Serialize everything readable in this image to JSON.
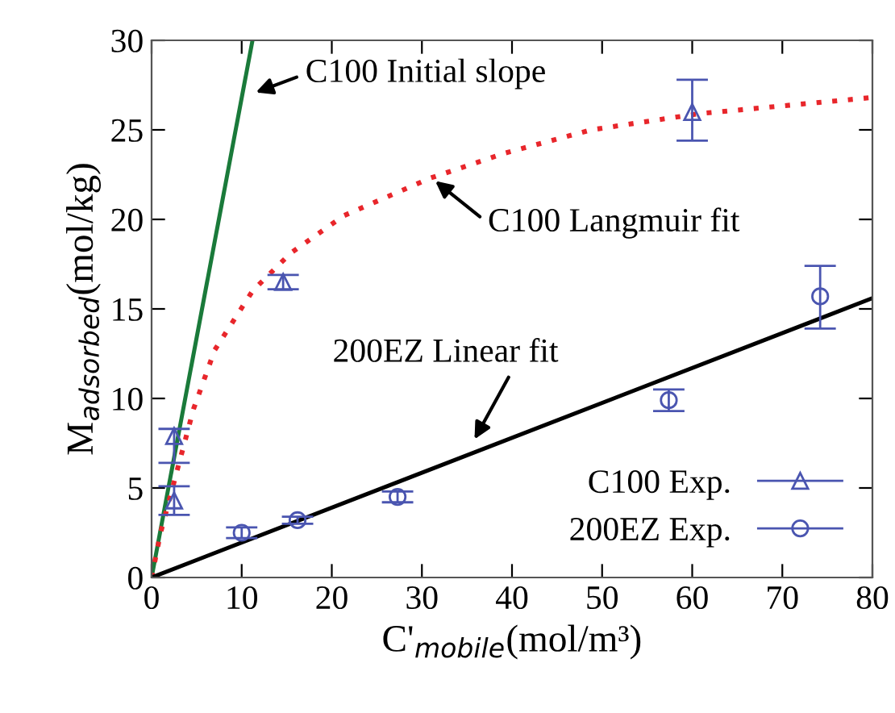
{
  "chart_data": {
    "type": "scatter",
    "xlabel": "C'$_{mobile}$(mol/m³)",
    "ylabel": "M$_{adsorbed}$(mol/kg)",
    "xlim": [
      0,
      80
    ],
    "ylim": [
      0,
      30
    ],
    "xticks": [
      0,
      10,
      20,
      30,
      40,
      50,
      60,
      70,
      80
    ],
    "yticks": [
      0,
      5,
      10,
      15,
      20,
      25,
      30
    ],
    "grid": false,
    "legend": "bottom right",
    "series": [
      {
        "type": "line",
        "color": "#1a7a3a",
        "x": [
          0,
          11.2
        ],
        "values": [
          0,
          30
        ],
        "marker": "none",
        "line_style": "solid"
      },
      {
        "type": "line",
        "color": "#e8262b",
        "x": [
          0,
          1,
          2.9,
          4.65,
          7.0,
          11.2,
          15.4,
          21.3,
          30.9,
          39.2,
          48.8,
          60.7,
          79.8
        ],
        "values": [
          0,
          2.5,
          6.1,
          9.4,
          12.7,
          16.0,
          18.1,
          20.2,
          22.3,
          23.7,
          25.0,
          25.9,
          26.8
        ],
        "marker": "none",
        "line_style": "dotted"
      },
      {
        "type": "line",
        "color": "#000000",
        "x": [
          0,
          80
        ],
        "values": [
          0,
          15.6
        ],
        "marker": "none",
        "line_style": "solid"
      },
      {
        "name": "C100 Exp.",
        "color": "#4a55b0",
        "marker": "triangle",
        "x": [
          2.5,
          2.5,
          14.6,
          60
        ],
        "values": [
          7.9,
          4.3,
          16.5,
          26
        ],
        "errors": [
          [
            6.4,
            8.3
          ],
          0.8,
          0.4,
          [
            24.4,
            27.8
          ]
        ]
      },
      {
        "name": "200EZ Exp.",
        "color": "#4a55b0",
        "marker": "circle",
        "x": [
          10,
          16.2,
          27.3,
          57.4,
          74.2
        ],
        "values": [
          2.5,
          3.2,
          4.5,
          9.9,
          15.7
        ],
        "errors": [
          0.3,
          0.2,
          0.3,
          0.6,
          [
            13.9,
            17.4
          ]
        ]
      }
    ],
    "annotations": [
      {
        "text": "C100 Initial slope",
        "x": 11.1,
        "y": 27.0
      },
      {
        "text": "C100 Langmuir fit",
        "x": 31.1,
        "y": 22.3
      },
      {
        "text": "200EZ Linear fit",
        "x": 35.6,
        "y": 7.5
      }
    ]
  }
}
